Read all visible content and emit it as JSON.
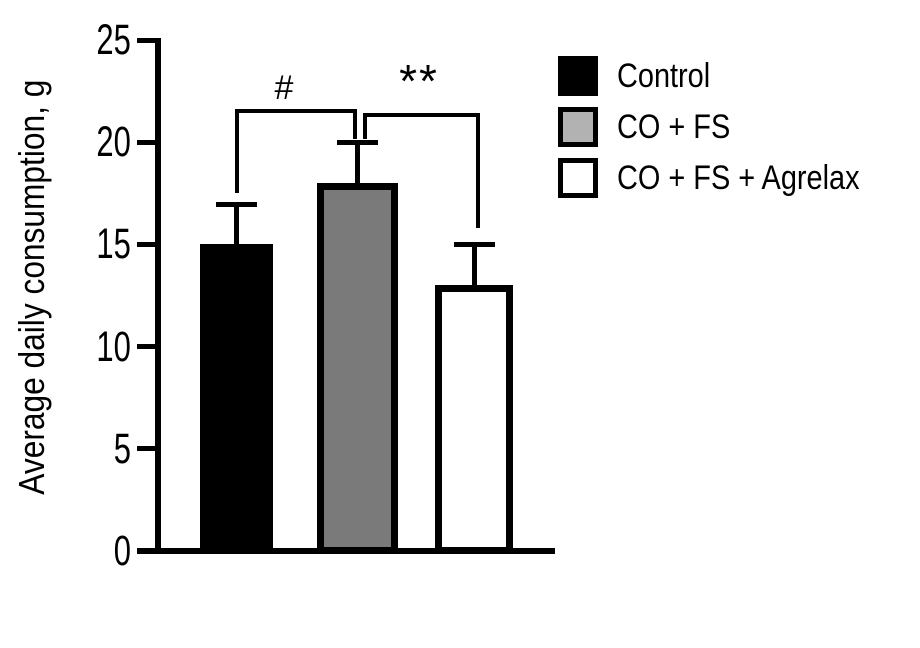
{
  "chart_data": {
    "type": "bar",
    "title": "",
    "xlabel": "",
    "ylabel": "Average daily consumption, g",
    "ylim": [
      0,
      25
    ],
    "yticks": [
      25,
      20,
      15,
      10,
      5,
      0
    ],
    "grid": false,
    "categories": [
      "Control",
      "CO + FS",
      "CO + FS + Agrelax"
    ],
    "values": [
      15,
      18,
      13
    ],
    "error_bars": [
      2,
      2,
      2
    ],
    "bar_colors": [
      "#000000",
      "#7a7a7a",
      "#ffffff"
    ],
    "bar_border_color": "#000000",
    "legend_position": "upper right",
    "legend": [
      {
        "label": "Control",
        "color": "#000000"
      },
      {
        "label": "CO + FS",
        "color": "#b2b2b2"
      },
      {
        "label": "CO + FS + Agrelax",
        "color": "#ffffff"
      }
    ],
    "significance": [
      {
        "symbol": "#",
        "between": [
          "Control",
          "CO + FS"
        ]
      },
      {
        "symbol": "**",
        "between": [
          "CO + FS",
          "CO + FS + Agrelax"
        ]
      }
    ]
  }
}
